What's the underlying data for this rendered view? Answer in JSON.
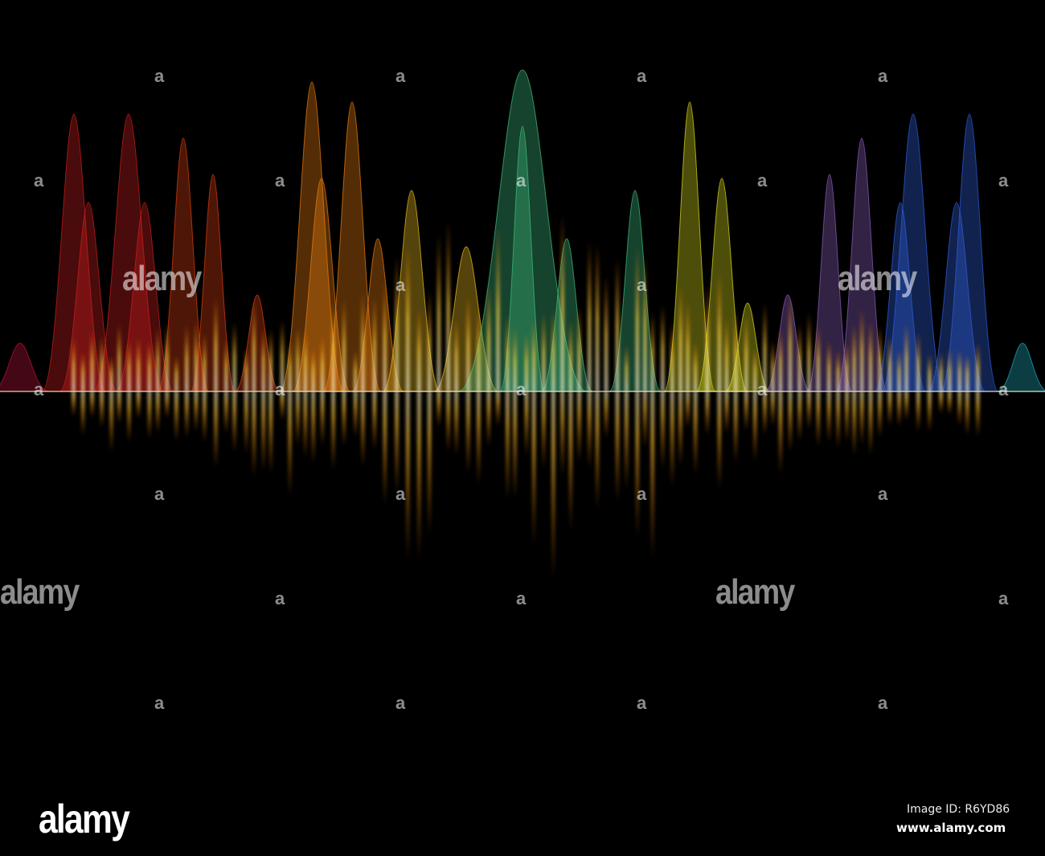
{
  "image": {
    "colors": {
      "background": "#000000",
      "spectrum": [
        "#c0143c",
        "#d02020",
        "#e04010",
        "#f08010",
        "#f0c020",
        "#40c080",
        "#e0e020",
        "#9060c0",
        "#3060e0",
        "#20b0c0"
      ],
      "reflection": "#ffd040"
    }
  },
  "watermark": {
    "glyph": "a",
    "word": "alamy"
  },
  "footer": {
    "logo": "alamy",
    "image_id": "Image ID: R6YD86",
    "site": "www.alamy.com"
  }
}
